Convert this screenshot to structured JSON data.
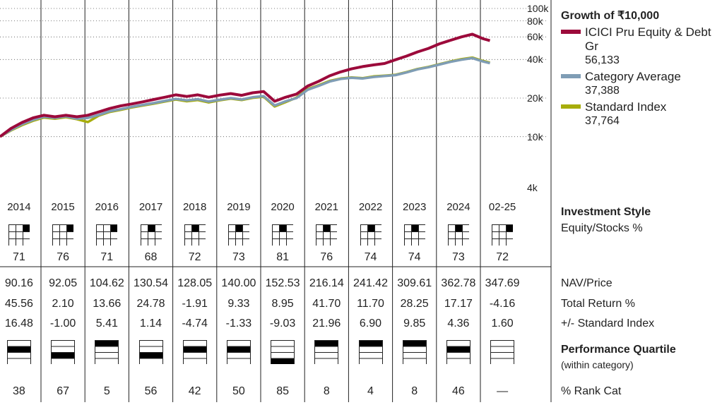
{
  "legend": {
    "title": "Growth of ₹10,000",
    "items": [
      {
        "label": "ICICI Pru Equity & Debt Gr",
        "value": "56,133",
        "color": "#9c0a3b"
      },
      {
        "label": "Category Average",
        "value": "37,388",
        "color": "#7f9db5"
      },
      {
        "label": "Standard Index",
        "value": "37,764",
        "color": "#a7ad0c"
      }
    ]
  },
  "chart_data": {
    "type": "line",
    "yscale": "log",
    "ylim": [
      4000,
      100000
    ],
    "yticks": [
      {
        "label": "100k",
        "value": 100000
      },
      {
        "label": "80k",
        "value": 80000
      },
      {
        "label": "60k",
        "value": 60000
      },
      {
        "label": "40k",
        "value": 40000
      },
      {
        "label": "20k",
        "value": 20000
      },
      {
        "label": "10k",
        "value": 10000
      },
      {
        "label": "4k",
        "value": 4000
      }
    ],
    "x": [
      2014.0,
      2014.25,
      2014.5,
      2014.75,
      2015.0,
      2015.25,
      2015.5,
      2015.75,
      2016.0,
      2016.25,
      2016.5,
      2016.75,
      2017.0,
      2017.25,
      2017.5,
      2017.75,
      2018.0,
      2018.25,
      2018.5,
      2018.75,
      2019.0,
      2019.25,
      2019.5,
      2019.75,
      2020.0,
      2020.25,
      2020.5,
      2020.75,
      2021.0,
      2021.25,
      2021.5,
      2021.75,
      2022.0,
      2022.25,
      2022.5,
      2022.75,
      2023.0,
      2023.25,
      2023.5,
      2023.75,
      2024.0,
      2024.25,
      2024.5,
      2024.75,
      2025.0,
      2025.15
    ],
    "series": [
      {
        "name": "ICICI Pru Equity & Debt Gr",
        "color": "#9c0a3b",
        "values": [
          10000,
          11600,
          12900,
          14000,
          14700,
          14300,
          14700,
          14300,
          14700,
          15600,
          16600,
          17400,
          18000,
          18700,
          19500,
          20300,
          21200,
          20600,
          21200,
          20300,
          21100,
          21700,
          21000,
          22000,
          22500,
          18900,
          20300,
          21500,
          24800,
          27000,
          29800,
          32000,
          33800,
          35200,
          36300,
          37200,
          39800,
          42500,
          45800,
          48800,
          53000,
          56500,
          60000,
          63000,
          58000,
          56133
        ]
      },
      {
        "name": "Category Average",
        "color": "#7f9db5",
        "values": [
          10000,
          11300,
          12500,
          13500,
          14300,
          14000,
          14400,
          13800,
          14000,
          14800,
          15800,
          16400,
          17100,
          17700,
          18300,
          19000,
          19700,
          19200,
          19600,
          18800,
          19400,
          20000,
          19500,
          20300,
          20700,
          17500,
          18900,
          20000,
          23200,
          24900,
          26900,
          28200,
          28800,
          28400,
          29200,
          29700,
          30200,
          31700,
          33500,
          34800,
          36500,
          38300,
          39800,
          41000,
          38500,
          37388
        ]
      },
      {
        "name": "Standard Index",
        "color": "#a7ad0c",
        "values": [
          10000,
          11200,
          12300,
          13300,
          14100,
          13800,
          14200,
          13700,
          13000,
          14600,
          15600,
          16200,
          16900,
          17500,
          18100,
          18800,
          19500,
          18900,
          19300,
          18500,
          19200,
          19800,
          19300,
          20100,
          20500,
          17200,
          18600,
          20200,
          23500,
          25200,
          27200,
          28400,
          29000,
          28600,
          29500,
          29900,
          30400,
          31900,
          33700,
          35000,
          36800,
          38600,
          40200,
          41400,
          38900,
          37764
        ]
      }
    ]
  },
  "years": [
    "2014",
    "2015",
    "2016",
    "2017",
    "2018",
    "2019",
    "2020",
    "2021",
    "2022",
    "2023",
    "2024",
    "02-25"
  ],
  "investment_style": {
    "title": "Investment Style",
    "subtitle": "Equity/Stocks %",
    "values": [
      "71",
      "76",
      "71",
      "68",
      "72",
      "73",
      "81",
      "76",
      "74",
      "74",
      "73",
      "72"
    ],
    "filled_cells": [
      2,
      2,
      2,
      1,
      1,
      1,
      1,
      1,
      1,
      1,
      1,
      2
    ]
  },
  "nav_price": {
    "label": "NAV/Price",
    "values": [
      "90.16",
      "92.05",
      "104.62",
      "130.54",
      "128.05",
      "140.00",
      "152.53",
      "216.14",
      "241.42",
      "309.61",
      "362.78",
      "347.69"
    ]
  },
  "total_return": {
    "label": "Total Return %",
    "values": [
      "45.56",
      "2.10",
      "13.66",
      "24.78",
      "-1.91",
      "9.33",
      "8.95",
      "41.70",
      "11.70",
      "28.25",
      "17.17",
      "-4.16"
    ]
  },
  "vs_index": {
    "label": "+/- Standard Index",
    "values": [
      "16.48",
      "-1.00",
      "5.41",
      "1.14",
      "-4.74",
      "-1.33",
      "-9.03",
      "21.96",
      "6.90",
      "9.85",
      "4.36",
      "1.60"
    ]
  },
  "performance_quartile": {
    "title": "Performance Quartile",
    "subtitle": "(within category)",
    "quartiles": [
      2,
      3,
      1,
      3,
      2,
      2,
      4,
      1,
      1,
      1,
      2,
      0
    ]
  },
  "rank_cat": {
    "label": "% Rank Cat",
    "values": [
      "38",
      "67",
      "5",
      "56",
      "42",
      "50",
      "85",
      "8",
      "4",
      "8",
      "46",
      "—"
    ]
  }
}
